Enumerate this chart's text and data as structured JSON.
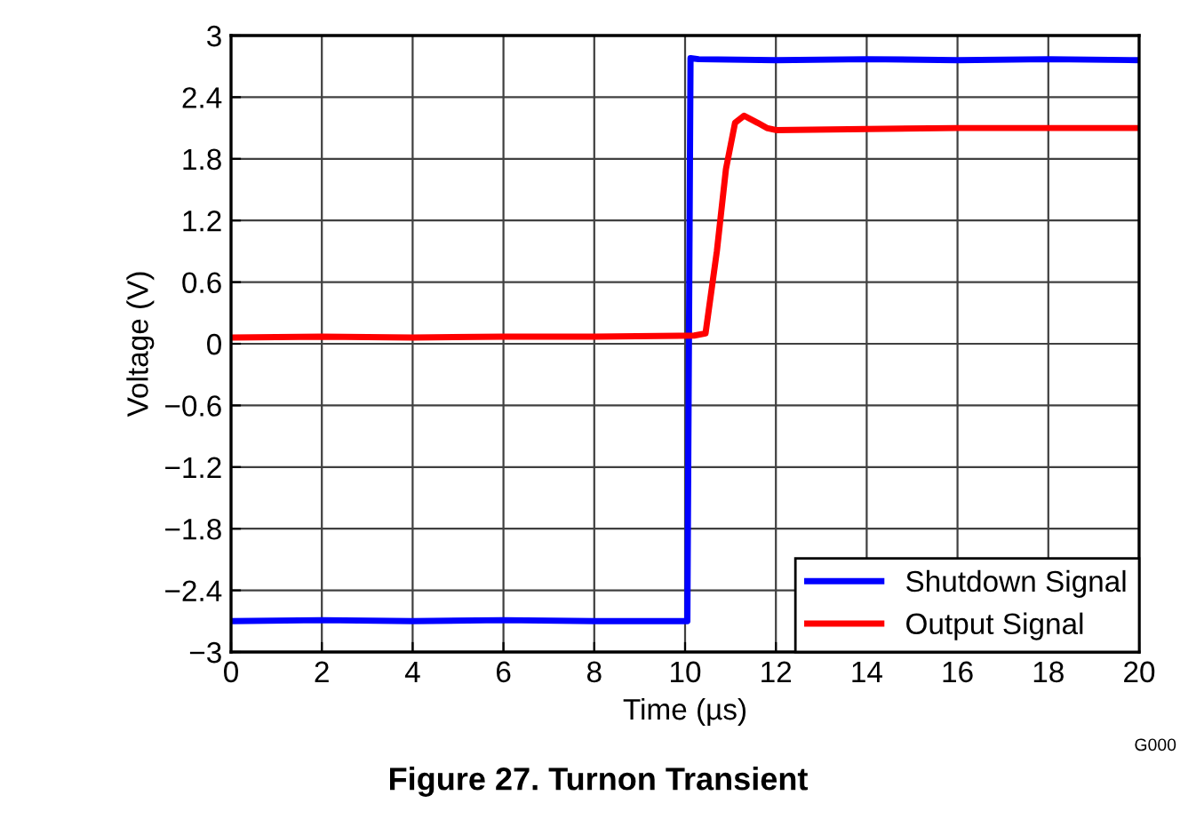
{
  "chart_data": {
    "type": "line",
    "title": "Figure 27. Turnon Transient",
    "xlabel": "Time (µs)",
    "ylabel": "Voltage (V)",
    "series": [
      {
        "name": "Shutdown Signal",
        "color": "#0000ff",
        "x": [
          0,
          2,
          4,
          6,
          8,
          10.05,
          10.12,
          10.3,
          12,
          14,
          16,
          18,
          20
        ],
        "values": [
          -2.7,
          -2.69,
          -2.7,
          -2.69,
          -2.7,
          -2.7,
          2.78,
          2.77,
          2.76,
          2.77,
          2.76,
          2.77,
          2.76
        ]
      },
      {
        "name": "Output Signal",
        "color": "#ff0000",
        "x": [
          0,
          2,
          4,
          6,
          8,
          10.2,
          10.45,
          10.7,
          10.9,
          11.1,
          11.3,
          11.6,
          11.8,
          12,
          14,
          16,
          18,
          20
        ],
        "values": [
          0.06,
          0.07,
          0.06,
          0.07,
          0.07,
          0.08,
          0.1,
          0.9,
          1.7,
          2.15,
          2.22,
          2.15,
          2.1,
          2.08,
          2.09,
          2.1,
          2.1,
          2.1
        ]
      }
    ],
    "xlim": [
      0,
      20
    ],
    "xticks": [
      0,
      2,
      4,
      6,
      8,
      10,
      12,
      14,
      16,
      18,
      20
    ],
    "ylim": [
      -3,
      3
    ],
    "yticks": [
      {
        "value": -3,
        "label": "−3"
      },
      {
        "value": -2.4,
        "label": "−2.4"
      },
      {
        "value": -1.8,
        "label": "−1.8"
      },
      {
        "value": -1.2,
        "label": "−1.2"
      },
      {
        "value": -0.6,
        "label": "−0.6"
      },
      0,
      0.6,
      1.2,
      1.8,
      2.4,
      3
    ],
    "grid": true,
    "legend": "bottom right",
    "annotations": [
      "G000"
    ]
  }
}
